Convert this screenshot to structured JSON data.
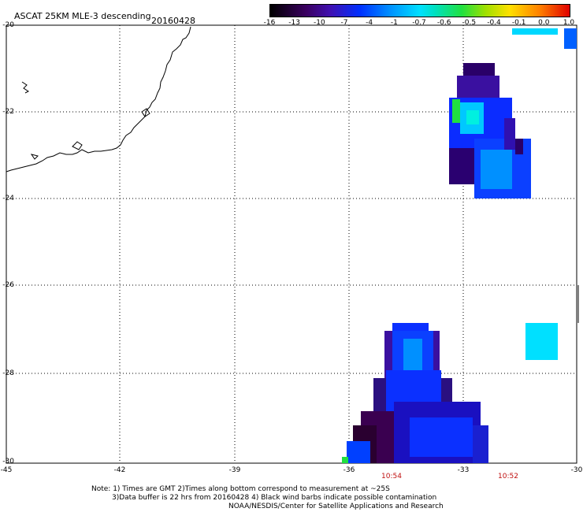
{
  "header": {
    "title": "ASCAT 25KM MLE-3 descending",
    "date": "20160428"
  },
  "colorbar": {
    "labels": [
      "-16",
      "-13",
      "-10",
      "-7",
      "-4",
      "-1",
      "-0.7",
      "-0.6",
      "-0.5",
      "-0.4",
      "-0.1",
      "0.0",
      "1.0"
    ]
  },
  "axes": {
    "lat_labels": [
      "-20",
      "-22",
      "-24",
      "-26",
      "-28",
      "-30"
    ],
    "lon_labels": [
      "-45",
      "-42",
      "-39",
      "-36",
      "-33",
      "-30"
    ]
  },
  "times": [
    "10:54",
    "10:52"
  ],
  "notes": {
    "line1": "Note: 1) Times are GMT 2)Times along bottom correspond to measurement at ~25S",
    "line2": "3)Data buffer is 22 hrs from 20160428 4) Black wind barbs indicate possible contamination",
    "line3": "NOAA/NESDIS/Center for Satellite Applications and Research"
  },
  "colors": {
    "swath_dark": "#2a0060",
    "swath_blue": "#1020ff",
    "swath_cyan": "#00e5ff",
    "swath_green": "#20e040"
  }
}
